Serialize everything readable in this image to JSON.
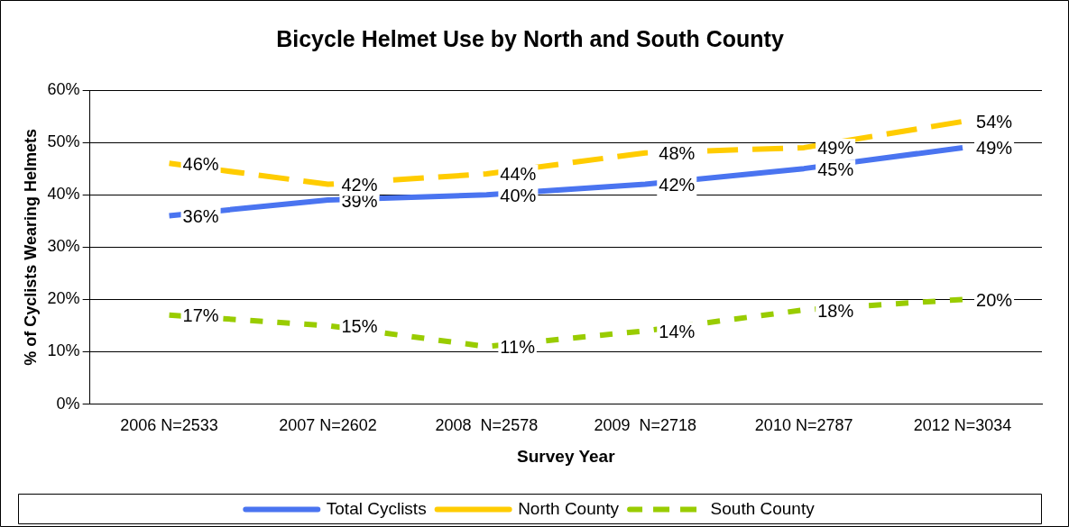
{
  "chart_data": {
    "type": "line",
    "title": "Bicycle Helmet Use by North and South County",
    "xlabel": "Survey Year",
    "ylabel": "% of Cyclists Wearing Helmets",
    "categories": [
      "2006 N=2533",
      "2007 N=2602",
      "2008  N=2578",
      "2009  N=2718",
      "2010 N=2787",
      "2012 N=3034"
    ],
    "series": [
      {
        "name": "Total Cyclists",
        "color": "#4a74f0",
        "line_style": "solid",
        "values": [
          36,
          39,
          40,
          42,
          45,
          49
        ],
        "value_labels": [
          "36%",
          "39%",
          "40%",
          "42%",
          "45%",
          "49%"
        ]
      },
      {
        "name": "North County",
        "color": "#ffcc00",
        "line_style": "dashed",
        "values": [
          46,
          42,
          44,
          48,
          49,
          54
        ],
        "value_labels": [
          "46%",
          "42%",
          "44%",
          "48%",
          "49%",
          "54%"
        ]
      },
      {
        "name": "South County",
        "color": "#99cc00",
        "line_style": "dotted",
        "values": [
          17,
          15,
          11,
          14,
          18,
          20
        ],
        "value_labels": [
          "17%",
          "15%",
          "11%",
          "14%",
          "18%",
          "20%"
        ]
      }
    ],
    "ylim": [
      0,
      60
    ],
    "yticks": [
      {
        "value": 0,
        "label": "0%"
      },
      {
        "value": 10,
        "label": "10%"
      },
      {
        "value": 20,
        "label": "20%"
      },
      {
        "value": 30,
        "label": "30%"
      },
      {
        "value": 40,
        "label": "40%"
      },
      {
        "value": 50,
        "label": "50%"
      },
      {
        "value": 60,
        "label": "60%"
      }
    ],
    "grid": "y",
    "legend": "bottom",
    "marker": "none"
  }
}
